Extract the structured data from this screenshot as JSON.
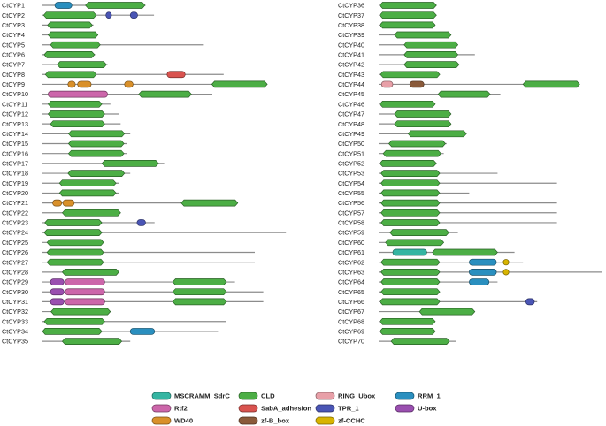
{
  "colors": {
    "MSCRAMM_SdrC": "#35b5a2",
    "CLD": "#4cae45",
    "RING_Ubox": "#e8a0a8",
    "RRM_1": "#2a8fbf",
    "Rtf2": "#cc66aa",
    "SabA_adhesion": "#d9534f",
    "TPR_1": "#4a55b5",
    "U-box": "#9a4fb0",
    "WD40": "#d9902a",
    "zf-B_box": "#8a5a3a",
    "zf-CCHC": "#d8b400",
    "backbone": "#8c8c8c"
  },
  "legend": [
    {
      "key": "MSCRAMM_SdrC",
      "label": "MSCRAMM_SdrC"
    },
    {
      "key": "CLD",
      "label": "CLD"
    },
    {
      "key": "RING_Ubox",
      "label": "RING_Ubox"
    },
    {
      "key": "RRM_1",
      "label": "RRM_1"
    },
    {
      "key": "Rtf2",
      "label": "Rtf2"
    },
    {
      "key": "SabA_adhesion",
      "label": "SabA_adhesion"
    },
    {
      "key": "TPR_1",
      "label": "TPR_1"
    },
    {
      "key": "U-box",
      "label": "U-box"
    },
    {
      "key": "WD40",
      "label": "WD40"
    },
    {
      "key": "zf-B_box",
      "label": "zf-B_box"
    },
    {
      "key": "zf-CCHC",
      "label": "zf-CCHC"
    }
  ],
  "proteins": [
    {
      "name": "CtCYP1",
      "len": 182,
      "domains": [
        [
          "RRM_1",
          22,
          52
        ],
        [
          "CLD",
          76,
          181
        ]
      ]
    },
    {
      "name": "CtCYP2",
      "len": 197,
      "domains": [
        [
          "CLD",
          2,
          95
        ],
        [
          "TPR_1",
          112,
          122
        ],
        [
          "TPR_1",
          155,
          168
        ]
      ]
    },
    {
      "name": "CtCYP3",
      "len": 90,
      "domains": [
        [
          "CLD",
          9,
          88
        ]
      ]
    },
    {
      "name": "CtCYP4",
      "len": 98,
      "domains": [
        [
          "CLD",
          10,
          98
        ]
      ]
    },
    {
      "name": "CtCYP5",
      "len": 285,
      "domains": [
        [
          "CLD",
          14,
          102
        ]
      ]
    },
    {
      "name": "CtCYP6",
      "len": 93,
      "domains": [
        [
          "CLD",
          3,
          92
        ]
      ]
    },
    {
      "name": "CtCYP7",
      "len": 115,
      "domains": [
        [
          "CLD",
          26,
          113
        ]
      ]
    },
    {
      "name": "CtCYP8",
      "len": 320,
      "domains": [
        [
          "CLD",
          5,
          95
        ],
        [
          "SabA_adhesion",
          220,
          252
        ]
      ]
    },
    {
      "name": "CtCYP9",
      "len": 397,
      "domains": [
        [
          "WD40",
          45,
          58
        ],
        [
          "WD40",
          62,
          86
        ],
        [
          "WD40",
          145,
          160
        ],
        [
          "CLD",
          299,
          397
        ]
      ]
    },
    {
      "name": "CtCYP10",
      "len": 300,
      "domains": [
        [
          "Rtf2",
          10,
          115
        ],
        [
          "CLD",
          170,
          263
        ]
      ]
    },
    {
      "name": "CtCYP11",
      "len": 120,
      "domains": [
        [
          "CLD",
          10,
          105
        ]
      ]
    },
    {
      "name": "CtCYP12",
      "len": 135,
      "domains": [
        [
          "CLD",
          10,
          110
        ]
      ]
    },
    {
      "name": "CtCYP13",
      "len": 138,
      "domains": [
        [
          "CLD",
          14,
          110
        ]
      ]
    },
    {
      "name": "CtCYP14",
      "len": 155,
      "domains": [
        [
          "CLD",
          46,
          145
        ]
      ]
    },
    {
      "name": "CtCYP15",
      "len": 150,
      "domains": [
        [
          "CLD",
          46,
          144
        ]
      ]
    },
    {
      "name": "CtCYP16",
      "len": 150,
      "domains": [
        [
          "CLD",
          46,
          144
        ]
      ]
    },
    {
      "name": "CtCYP17",
      "len": 215,
      "domains": [
        [
          "CLD",
          105,
          205
        ]
      ]
    },
    {
      "name": "CtCYP18",
      "len": 155,
      "domains": [
        [
          "CLD",
          45,
          145
        ]
      ]
    },
    {
      "name": "CtCYP19",
      "len": 135,
      "domains": [
        [
          "CLD",
          30,
          130
        ]
      ]
    },
    {
      "name": "CtCYP20",
      "len": 135,
      "domains": [
        [
          "CLD",
          30,
          130
        ]
      ]
    },
    {
      "name": "CtCYP21",
      "len": 345,
      "domains": [
        [
          "WD40",
          18,
          34
        ],
        [
          "WD40",
          36,
          56
        ],
        [
          "CLD",
          245,
          345
        ]
      ]
    },
    {
      "name": "CtCYP22",
      "len": 138,
      "domains": [
        [
          "CLD",
          35,
          138
        ]
      ]
    },
    {
      "name": "CtCYP23",
      "len": 198,
      "domains": [
        [
          "CLD",
          4,
          105
        ],
        [
          "TPR_1",
          167,
          182
        ]
      ]
    },
    {
      "name": "CtCYP24",
      "len": 430,
      "domains": [
        [
          "CLD",
          3,
          105
        ]
      ]
    },
    {
      "name": "CtCYP25",
      "len": 108,
      "domains": [
        [
          "CLD",
          8,
          108
        ]
      ]
    },
    {
      "name": "CtCYP26",
      "len": 375,
      "domains": [
        [
          "CLD",
          8,
          108
        ]
      ]
    },
    {
      "name": "CtCYP27",
      "len": 375,
      "domains": [
        [
          "CLD",
          8,
          108
        ]
      ]
    },
    {
      "name": "CtCYP28",
      "len": 135,
      "domains": [
        [
          "CLD",
          35,
          135
        ]
      ]
    },
    {
      "name": "CtCYP29",
      "len": 340,
      "domains": [
        [
          "U-box",
          14,
          38
        ],
        [
          "Rtf2",
          40,
          110
        ],
        [
          "CLD",
          230,
          325
        ]
      ]
    },
    {
      "name": "CtCYP30",
      "len": 390,
      "domains": [
        [
          "U-box",
          14,
          38
        ],
        [
          "Rtf2",
          40,
          110
        ],
        [
          "CLD",
          230,
          325
        ]
      ]
    },
    {
      "name": "CtCYP31",
      "len": 390,
      "domains": [
        [
          "U-box",
          14,
          38
        ],
        [
          "Rtf2",
          40,
          110
        ],
        [
          "CLD",
          230,
          325
        ]
      ]
    },
    {
      "name": "CtCYP32",
      "len": 120,
      "domains": [
        [
          "CLD",
          15,
          120
        ]
      ]
    },
    {
      "name": "CtCYP33",
      "len": 325,
      "domains": [
        [
          "CLD",
          3,
          110
        ]
      ]
    },
    {
      "name": "CtCYP34",
      "len": 310,
      "domains": [
        [
          "CLD",
          0,
          105
        ],
        [
          "RRM_1",
          155,
          198
        ]
      ]
    },
    {
      "name": "CtCYP35",
      "len": 155,
      "domains": [
        [
          "CLD",
          35,
          140
        ]
      ]
    },
    {
      "name": "CtCYP36",
      "len": 102,
      "domains": [
        [
          "CLD",
          2,
          102
        ]
      ]
    },
    {
      "name": "CtCYP37",
      "len": 102,
      "domains": [
        [
          "CLD",
          2,
          102
        ]
      ]
    },
    {
      "name": "CtCYP38",
      "len": 100,
      "domains": [
        [
          "CLD",
          2,
          100
        ]
      ]
    },
    {
      "name": "CtCYP39",
      "len": 128,
      "domains": [
        [
          "CLD",
          28,
          128
        ]
      ]
    },
    {
      "name": "CtCYP40",
      "len": 140,
      "domains": [
        [
          "CLD",
          45,
          140
        ]
      ]
    },
    {
      "name": "CtCYP41",
      "len": 170,
      "domains": [
        [
          "CLD",
          45,
          140
        ]
      ]
    },
    {
      "name": "CtCYP42",
      "len": 142,
      "domains": [
        [
          "CLD",
          45,
          142
        ]
      ]
    },
    {
      "name": "CtCYP43",
      "len": 108,
      "domains": [
        [
          "CLD",
          3,
          108
        ]
      ]
    },
    {
      "name": "CtCYP44",
      "len": 355,
      "domains": [
        [
          "RING_Ubox",
          5,
          25
        ],
        [
          "zf-B_box",
          55,
          80
        ],
        [
          "CLD",
          255,
          355
        ]
      ]
    },
    {
      "name": "CtCYP45",
      "len": 215,
      "domains": [
        [
          "CLD",
          105,
          197
        ]
      ]
    },
    {
      "name": "CtCYP46",
      "len": 100,
      "domains": [
        [
          "CLD",
          2,
          100
        ]
      ]
    },
    {
      "name": "CtCYP47",
      "len": 128,
      "domains": [
        [
          "CLD",
          28,
          128
        ]
      ]
    },
    {
      "name": "CtCYP48",
      "len": 128,
      "domains": [
        [
          "CLD",
          28,
          128
        ]
      ]
    },
    {
      "name": "CtCYP49",
      "len": 155,
      "domains": [
        [
          "CLD",
          52,
          155
        ]
      ]
    },
    {
      "name": "CtCYP50",
      "len": 120,
      "domains": [
        [
          "CLD",
          18,
          118
        ]
      ]
    },
    {
      "name": "CtCYP51",
      "len": 115,
      "domains": [
        [
          "CLD",
          8,
          110
        ]
      ]
    },
    {
      "name": "CtCYP52",
      "len": 102,
      "domains": [
        [
          "CLD",
          2,
          102
        ]
      ]
    },
    {
      "name": "CtCYP53",
      "len": 210,
      "domains": [
        [
          "CLD",
          4,
          108
        ]
      ]
    },
    {
      "name": "CtCYP54",
      "len": 315,
      "domains": [
        [
          "CLD",
          4,
          108
        ]
      ]
    },
    {
      "name": "CtCYP55",
      "len": 160,
      "domains": [
        [
          "CLD",
          4,
          108
        ]
      ]
    },
    {
      "name": "CtCYP56",
      "len": 315,
      "domains": [
        [
          "CLD",
          4,
          108
        ]
      ]
    },
    {
      "name": "CtCYP57",
      "len": 315,
      "domains": [
        [
          "CLD",
          4,
          108
        ]
      ]
    },
    {
      "name": "CtCYP58",
      "len": 315,
      "domains": [
        [
          "CLD",
          4,
          108
        ]
      ]
    },
    {
      "name": "CtCYP59",
      "len": 140,
      "domains": [
        [
          "CLD",
          20,
          124
        ]
      ]
    },
    {
      "name": "CtCYP60",
      "len": 115,
      "domains": [
        [
          "CLD",
          12,
          115
        ]
      ]
    },
    {
      "name": "CtCYP61",
      "len": 240,
      "domains": [
        [
          "MSCRAMM_SdrC",
          25,
          85
        ],
        [
          "CLD",
          95,
          210
        ]
      ]
    },
    {
      "name": "CtCYP62",
      "len": 255,
      "domains": [
        [
          "CLD",
          4,
          108
        ],
        [
          "RRM_1",
          160,
          208
        ],
        [
          "zf-CCHC",
          220,
          230
        ]
      ]
    },
    {
      "name": "CtCYP63",
      "len": 395,
      "domains": [
        [
          "CLD",
          4,
          108
        ],
        [
          "RRM_1",
          160,
          208
        ],
        [
          "zf-CCHC",
          220,
          230
        ]
      ]
    },
    {
      "name": "CtCYP64",
      "len": 210,
      "domains": [
        [
          "CLD",
          4,
          108
        ],
        [
          "RRM_1",
          160,
          195
        ]
      ]
    },
    {
      "name": "CtCYP65",
      "len": 108,
      "domains": [
        [
          "CLD",
          4,
          108
        ]
      ]
    },
    {
      "name": "CtCYP66",
      "len": 280,
      "domains": [
        [
          "CLD",
          2,
          108
        ],
        [
          "TPR_1",
          260,
          275
        ]
      ]
    },
    {
      "name": "CtCYP67",
      "len": 170,
      "domains": [
        [
          "CLD",
          72,
          170
        ]
      ]
    },
    {
      "name": "CtCYP68",
      "len": 100,
      "domains": [
        [
          "CLD",
          2,
          100
        ]
      ]
    },
    {
      "name": "CtCYP69",
      "len": 100,
      "domains": [
        [
          "CLD",
          2,
          100
        ]
      ]
    },
    {
      "name": "CtCYP70",
      "len": 137,
      "domains": [
        [
          "CLD",
          22,
          125
        ]
      ]
    }
  ]
}
